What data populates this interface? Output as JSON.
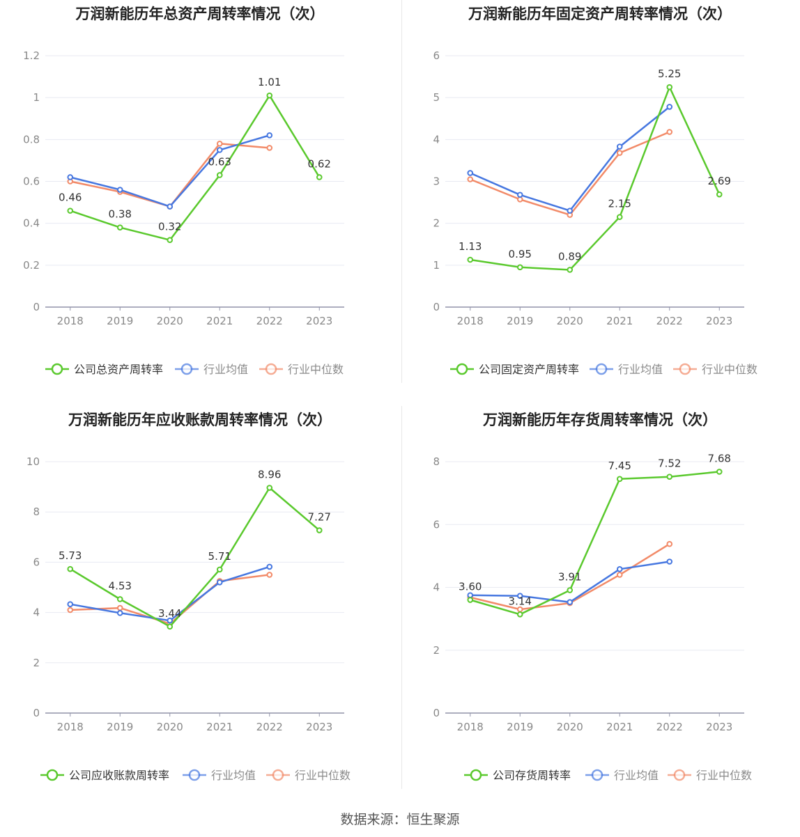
{
  "colors": {
    "company": "#5ac92d",
    "industry_avg": "#4677e0",
    "industry_median": "#f28a68",
    "grid": "#e8eaf2",
    "axis": "#9092a8",
    "tick": "#888888",
    "label": "#333333",
    "title": "#222222"
  },
  "source_text": "数据来源：恒生聚源",
  "chart_data": [
    {
      "type": "line",
      "title": "万润新能历年总资产周转率情况（次）",
      "categories": [
        "2018",
        "2019",
        "2020",
        "2021",
        "2022",
        "2023"
      ],
      "yticks": [
        "0",
        "0.2",
        "0.4",
        "0.6",
        "0.8",
        "1",
        "1.2"
      ],
      "ylim": [
        0,
        1.2
      ],
      "grid": true,
      "legend_position": "bottom",
      "series": [
        {
          "name": "公司总资产周转率",
          "key": "company",
          "values": [
            0.46,
            0.38,
            0.32,
            0.63,
            1.01,
            0.62
          ],
          "labels": [
            "0.46",
            "0.38",
            "0.32",
            "0.63",
            "1.01",
            "0.62"
          ]
        },
        {
          "name": "行业均值",
          "key": "industry_avg",
          "values": [
            0.62,
            0.56,
            0.48,
            0.75,
            0.82,
            null
          ]
        },
        {
          "name": "行业中位数",
          "key": "industry_median",
          "values": [
            0.6,
            0.55,
            0.48,
            0.78,
            0.76,
            null
          ]
        }
      ]
    },
    {
      "type": "line",
      "title": "万润新能历年固定资产周转率情况（次）",
      "categories": [
        "2018",
        "2019",
        "2020",
        "2021",
        "2022",
        "2023"
      ],
      "yticks": [
        "0",
        "1",
        "2",
        "3",
        "4",
        "5",
        "6"
      ],
      "ylim": [
        0,
        6
      ],
      "grid": true,
      "legend_position": "bottom",
      "series": [
        {
          "name": "公司固定资产周转率",
          "key": "company",
          "values": [
            1.13,
            0.95,
            0.89,
            2.15,
            5.25,
            2.69
          ],
          "labels": [
            "1.13",
            "0.95",
            "0.89",
            "2.15",
            "5.25",
            "2.69"
          ]
        },
        {
          "name": "行业均值",
          "key": "industry_avg",
          "values": [
            3.2,
            2.68,
            2.3,
            3.83,
            4.78,
            null
          ]
        },
        {
          "name": "行业中位数",
          "key": "industry_median",
          "values": [
            3.05,
            2.57,
            2.2,
            3.68,
            4.18,
            null
          ]
        }
      ]
    },
    {
      "type": "line",
      "title": "万润新能历年应收账款周转率情况（次）",
      "categories": [
        "2018",
        "2019",
        "2020",
        "2021",
        "2022",
        "2023"
      ],
      "yticks": [
        "0",
        "2",
        "4",
        "6",
        "8",
        "10"
      ],
      "ylim": [
        0,
        10
      ],
      "grid": true,
      "legend_position": "bottom",
      "series": [
        {
          "name": "公司应收账款周转率",
          "key": "company",
          "values": [
            5.73,
            4.53,
            3.44,
            5.71,
            8.96,
            7.27
          ],
          "labels": [
            "5.73",
            "4.53",
            "3.44",
            "5.71",
            "8.96",
            "7.27"
          ]
        },
        {
          "name": "行业均值",
          "key": "industry_avg",
          "values": [
            4.33,
            3.98,
            3.68,
            5.2,
            5.82,
            null
          ]
        },
        {
          "name": "行业中位数",
          "key": "industry_median",
          "values": [
            4.1,
            4.18,
            3.55,
            5.25,
            5.5,
            null
          ]
        }
      ]
    },
    {
      "type": "line",
      "title": "万润新能历年存货周转率情况（次）",
      "categories": [
        "2018",
        "2019",
        "2020",
        "2021",
        "2022",
        "2023"
      ],
      "yticks": [
        "0",
        "2",
        "4",
        "6",
        "8"
      ],
      "ylim": [
        0,
        8
      ],
      "grid": true,
      "legend_position": "bottom",
      "series": [
        {
          "name": "公司存货周转率",
          "key": "company",
          "values": [
            3.6,
            3.14,
            3.91,
            7.45,
            7.52,
            7.68
          ],
          "labels": [
            "3.60",
            "3.14",
            "3.91",
            "7.45",
            "7.52",
            "7.68"
          ]
        },
        {
          "name": "行业均值",
          "key": "industry_avg",
          "values": [
            3.75,
            3.73,
            3.53,
            4.58,
            4.82,
            null
          ]
        },
        {
          "name": "行业中位数",
          "key": "industry_median",
          "values": [
            3.68,
            3.3,
            3.5,
            4.4,
            5.38,
            null
          ]
        }
      ]
    }
  ]
}
